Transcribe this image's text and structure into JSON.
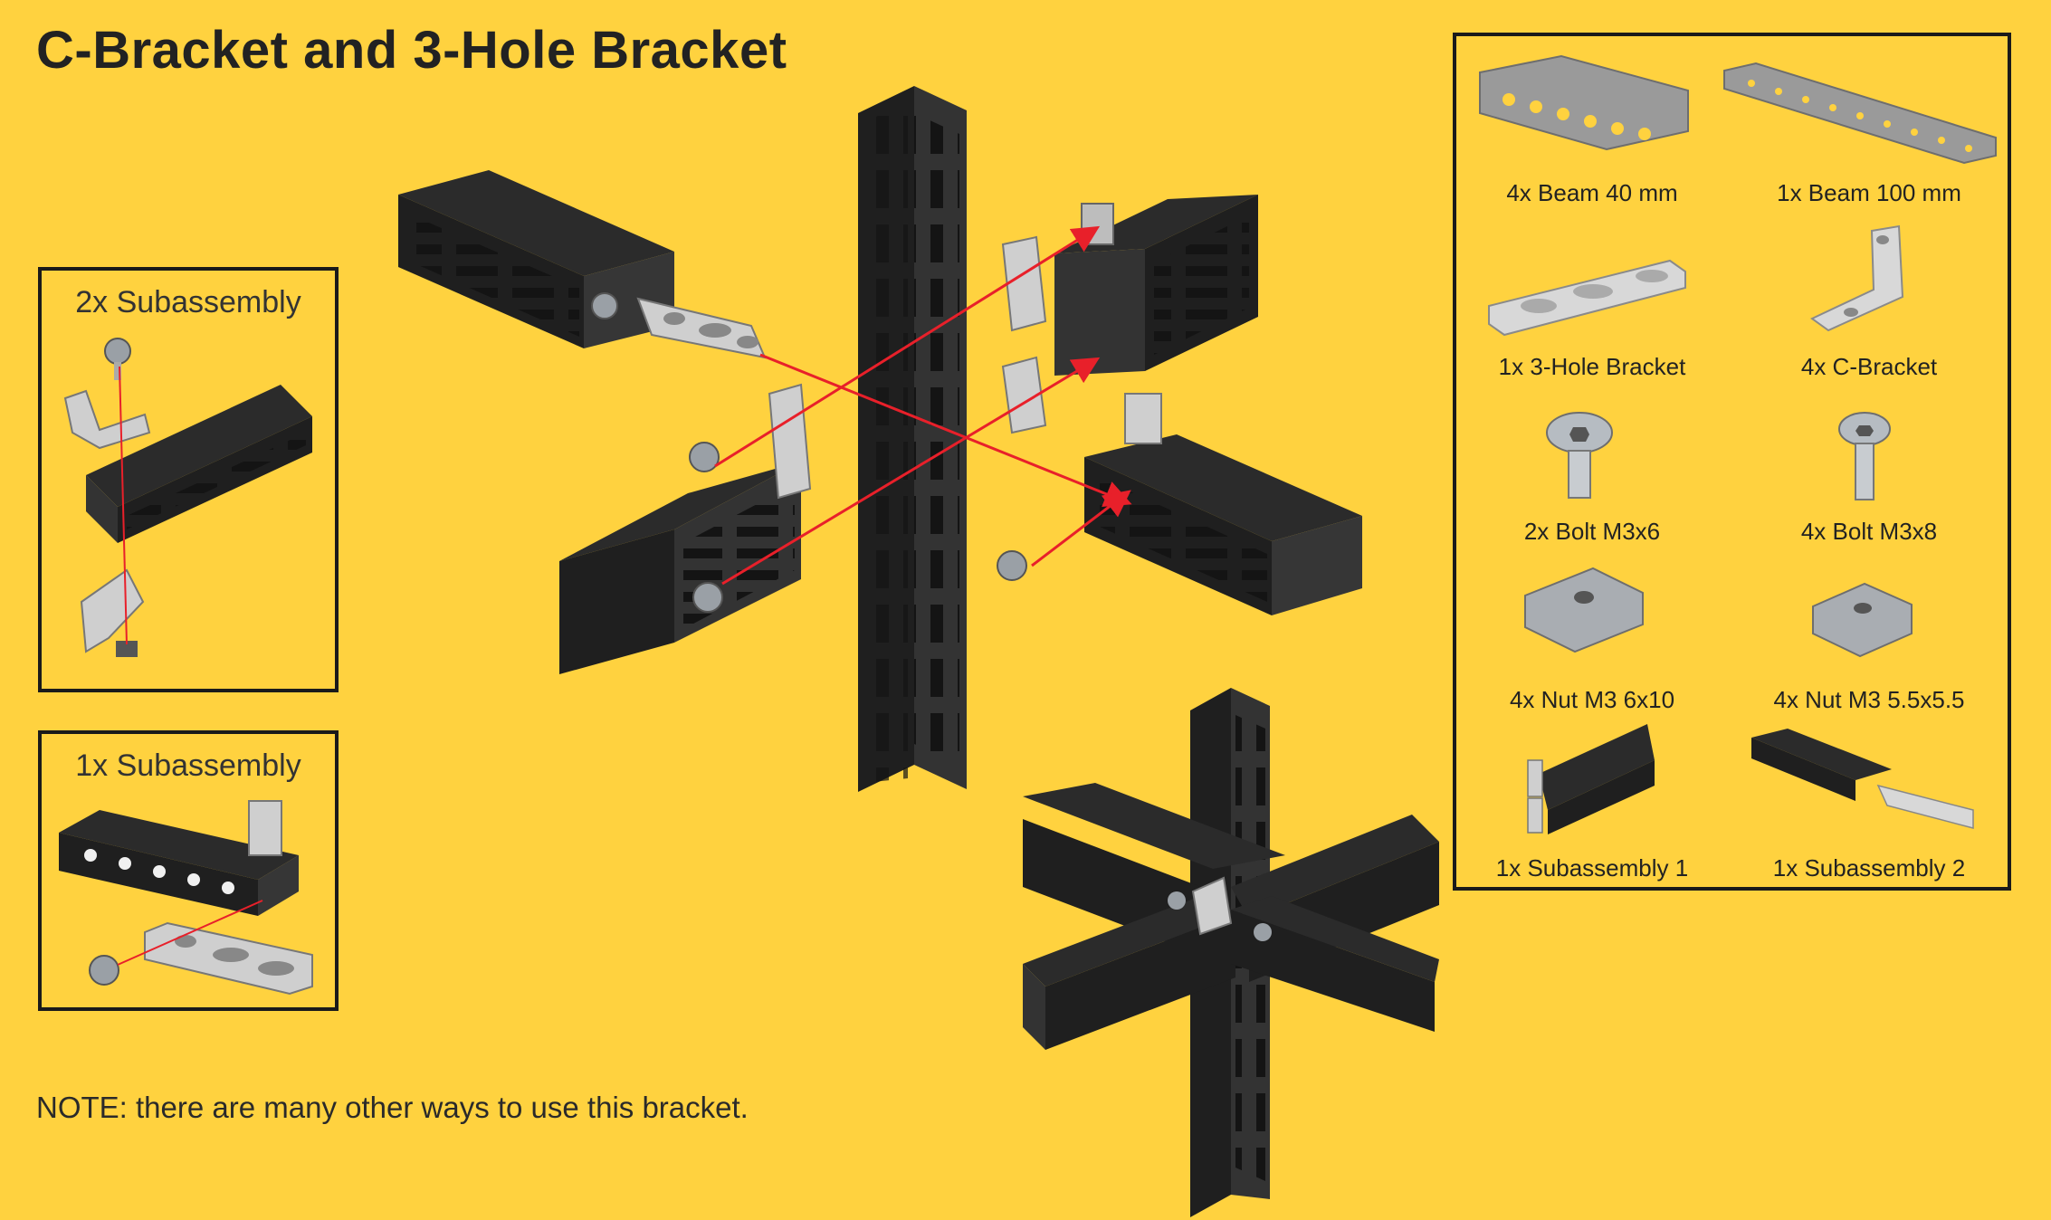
{
  "title": "C-Bracket and 3-Hole Bracket",
  "note": "NOTE: there are many other ways to use this bracket.",
  "subassembly_2x": {
    "label": "2x Subassembly"
  },
  "subassembly_1x": {
    "label": "1x Subassembly"
  },
  "parts": [
    {
      "label": "4x Beam 40 mm",
      "icon": "beam-40mm-icon"
    },
    {
      "label": "1x Beam 100 mm",
      "icon": "beam-100mm-icon"
    },
    {
      "label": "1x 3-Hole Bracket",
      "icon": "three-hole-bracket-icon"
    },
    {
      "label": "4x C-Bracket",
      "icon": "c-bracket-icon"
    },
    {
      "label": "2x Bolt M3x6",
      "icon": "bolt-m3x6-icon"
    },
    {
      "label": "4x Bolt M3x8",
      "icon": "bolt-m3x8-icon"
    },
    {
      "label": "4x Nut M3 6x10",
      "icon": "nut-6x10-icon"
    },
    {
      "label": "4x Nut M3 5.5x5.5",
      "icon": "nut-5-5-icon"
    },
    {
      "label": "1x Subassembly 1",
      "icon": "subassembly-1-icon"
    },
    {
      "label": "1x Subassembly 2",
      "icon": "subassembly-2-icon"
    }
  ],
  "colors": {
    "background": "#FFD23F",
    "beam": "#2b2b2b",
    "metal": "#cfcfcf",
    "arrow": "#e8202a"
  }
}
